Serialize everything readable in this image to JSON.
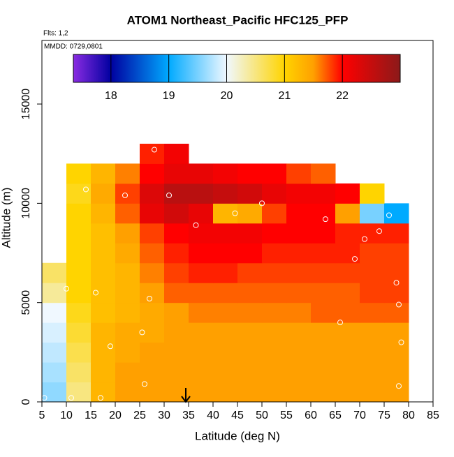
{
  "chart_data": {
    "type": "heatmap",
    "title": "ATOM1 Northeast_Pacific HFC125_PFP",
    "subtitle": "Flts: 1,2",
    "annotation": "MMDD: 0729,0801",
    "x_label": "Latitude (deg N)",
    "y_label": "Altitude (m)",
    "xlim": [
      5,
      85
    ],
    "ylim": [
      0,
      18200
    ],
    "xticks": [
      5,
      10,
      15,
      20,
      25,
      30,
      35,
      40,
      45,
      50,
      55,
      60,
      65,
      70,
      75,
      80,
      85
    ],
    "yticks": [
      0,
      5000,
      10000,
      15000
    ],
    "x_edges": [
      5,
      10,
      15,
      20,
      25,
      30,
      35,
      40,
      45,
      50,
      55,
      60,
      65,
      70,
      75,
      80
    ],
    "y_edges": [
      0,
      1000,
      2000,
      3000,
      4000,
      5000,
      6000,
      7000,
      8000,
      9000,
      10000,
      11000,
      12000,
      13000
    ],
    "z": [
      [
        19.6,
        20.5,
        21.3,
        21.5,
        21.5,
        21.5,
        21.5,
        21.5,
        21.5,
        21.5,
        21.5,
        21.5,
        21.5,
        21.5,
        21.5
      ],
      [
        19.7,
        20.6,
        21.3,
        21.5,
        21.5,
        21.5,
        21.5,
        21.5,
        21.5,
        21.5,
        21.5,
        21.5,
        21.5,
        21.5,
        21.5
      ],
      [
        19.8,
        20.7,
        21.3,
        21.4,
        21.5,
        21.5,
        21.5,
        21.5,
        21.5,
        21.5,
        21.5,
        21.5,
        21.5,
        21.5,
        21.5
      ],
      [
        19.9,
        20.8,
        21.3,
        21.4,
        21.4,
        21.5,
        21.5,
        21.5,
        21.5,
        21.5,
        21.5,
        21.5,
        21.5,
        21.5,
        21.5
      ],
      [
        20.0,
        20.9,
        21.2,
        21.3,
        21.4,
        21.5,
        21.6,
        21.6,
        21.6,
        21.6,
        21.6,
        21.7,
        21.7,
        21.7,
        21.7
      ],
      [
        20.4,
        21.0,
        21.2,
        21.3,
        21.5,
        21.7,
        21.7,
        21.7,
        21.7,
        21.7,
        21.7,
        21.7,
        21.7,
        21.8,
        21.8
      ],
      [
        20.6,
        21.0,
        21.2,
        21.3,
        21.6,
        21.8,
        21.9,
        21.9,
        21.8,
        21.8,
        21.8,
        21.8,
        21.8,
        21.8,
        21.8
      ],
      [
        null,
        21.0,
        21.2,
        21.4,
        21.7,
        21.9,
        22.0,
        22.0,
        22.0,
        21.9,
        21.9,
        21.9,
        21.9,
        21.8,
        21.8
      ],
      [
        null,
        21.0,
        21.2,
        21.5,
        21.8,
        22.0,
        22.1,
        22.1,
        22.1,
        22.0,
        22.0,
        22.0,
        21.9,
        21.9,
        21.9
      ],
      [
        null,
        21.0,
        21.3,
        21.7,
        22.2,
        22.4,
        22.2,
        21.3,
        21.4,
        21.8,
        22.0,
        22.0,
        21.5,
        19.5,
        19.0
      ],
      [
        null,
        20.9,
        21.4,
        21.8,
        22.3,
        22.6,
        22.6,
        22.5,
        22.4,
        22.2,
        22.1,
        22.1,
        22.0,
        21.0,
        null
      ],
      [
        null,
        21.0,
        21.3,
        21.6,
        22.0,
        22.2,
        22.2,
        22.1,
        22.0,
        22.0,
        21.8,
        21.7,
        null,
        null,
        null
      ],
      [
        null,
        null,
        null,
        null,
        21.9,
        22.1,
        null,
        null,
        null,
        null,
        null,
        null,
        null,
        null,
        null
      ]
    ],
    "points": {
      "x": [
        5.5,
        11,
        17,
        26,
        78,
        78.5,
        19,
        25.5,
        66,
        78,
        27,
        16,
        10,
        77.5,
        69,
        71,
        36.5,
        63,
        76,
        74,
        50,
        44.5,
        31,
        22,
        14,
        28
      ],
      "y": [
        200,
        200,
        200,
        900,
        800,
        3000,
        2800,
        3500,
        4000,
        4900,
        5200,
        5500,
        5700,
        6000,
        7200,
        8200,
        8900,
        9200,
        9400,
        8600,
        10000,
        9500,
        10400,
        10400,
        10700,
        12700
      ]
    },
    "colorscale": [
      {
        "value": 17.35,
        "color": "#8a2be2"
      },
      {
        "value": 18,
        "color": "#0000a0"
      },
      {
        "value": 19,
        "color": "#00aaff"
      },
      {
        "value": 20,
        "color": "#f0f8ff"
      },
      {
        "value": 21,
        "color": "#ffd400"
      },
      {
        "value": 21.5,
        "color": "#ffa000"
      },
      {
        "value": 22,
        "color": "#ff0000"
      },
      {
        "value": 23,
        "color": "#8b1a1a"
      }
    ],
    "colorbar_lim": [
      17.35,
      23
    ],
    "colorbar_ticks": [
      18,
      19,
      20,
      21,
      22
    ]
  }
}
